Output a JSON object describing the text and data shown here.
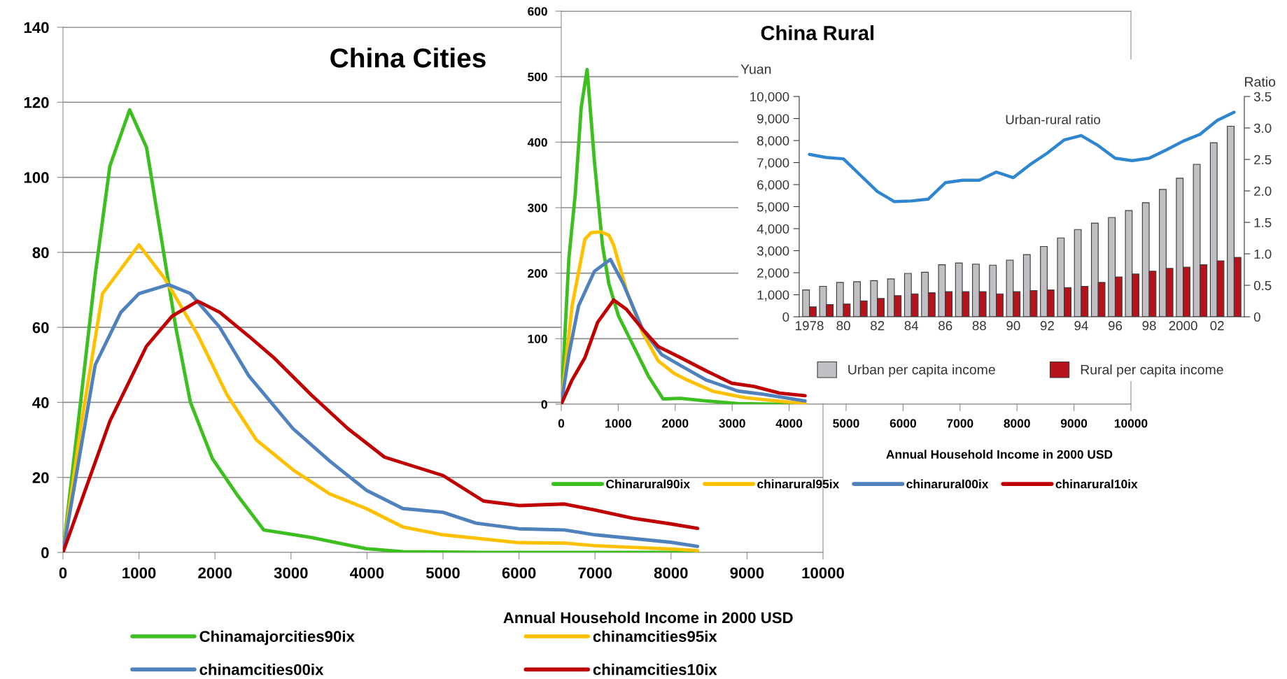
{
  "chart_data": [
    {
      "type": "line",
      "title": "China Cities",
      "xlabel": "Annual Household Income in 2000 USD",
      "xlim": [
        0,
        10000
      ],
      "xticks": [
        0,
        1000,
        2000,
        3000,
        4000,
        5000,
        6000,
        7000,
        8000,
        9000,
        10000
      ],
      "ylim": [
        0,
        140
      ],
      "yticks": [
        0,
        20,
        40,
        60,
        80,
        100,
        120,
        140
      ],
      "grid": "y",
      "legend": "bottom",
      "marker": "none",
      "line_style": "solid",
      "series": [
        {
          "name": "Chinamajorcities90ix",
          "color": "#3cbf1f",
          "x": [
            0,
            231,
            424,
            617,
            877,
            1099,
            1292,
            1484,
            1677,
            1966,
            2304,
            2641,
            3267,
            3990,
            4472,
            5500,
            6500,
            7500,
            8350
          ],
          "values": [
            0,
            40,
            74,
            103,
            118,
            108,
            84,
            60,
            40,
            25,
            15,
            6,
            4,
            1,
            0.2,
            0,
            0,
            0,
            0
          ]
        },
        {
          "name": "chinamcities95ix",
          "color": "#ffc000",
          "x": [
            0,
            231,
            520,
            1000,
            1340,
            1773,
            2159,
            2545,
            3027,
            3508,
            3990,
            4472,
            5000,
            6000,
            6600,
            7000,
            8000,
            8350
          ],
          "values": [
            0,
            33,
            69,
            82,
            73,
            58,
            42,
            30,
            22,
            15.6,
            11.7,
            6.8,
            4.7,
            2.6,
            2.5,
            1.8,
            0.9,
            0.5
          ]
        },
        {
          "name": "chinamcities00ix",
          "color": "#4f81bd",
          "x": [
            0,
            424,
            761,
            1000,
            1388,
            1677,
            2063,
            2448,
            3027,
            3508,
            3990,
            4472,
            5000,
            5434,
            6000,
            6600,
            7000,
            8000,
            8350
          ],
          "values": [
            0,
            50,
            64,
            69,
            71.4,
            69,
            60,
            47,
            33,
            24.4,
            16.6,
            11.7,
            10.7,
            7.8,
            6.3,
            6,
            4.7,
            2.7,
            1.6
          ]
        },
        {
          "name": "chinamcities10ix",
          "color": "#c00000",
          "x": [
            0,
            617,
            1099,
            1436,
            1773,
            2063,
            2448,
            2786,
            3267,
            3749,
            4231,
            5000,
            5533,
            6000,
            6600,
            7000,
            7500,
            8000,
            8350
          ],
          "values": [
            0,
            35,
            55,
            63,
            67,
            64,
            57.6,
            51.7,
            42,
            33,
            25.4,
            20.5,
            13.7,
            12.5,
            12.9,
            11.3,
            9.1,
            7.6,
            6.4
          ]
        }
      ]
    },
    {
      "type": "line",
      "title": "China Rural",
      "xlabel": "Annual Household Income in 2000 USD",
      "xlim": [
        0,
        10000
      ],
      "xticks": [
        0,
        1000,
        2000,
        3000,
        4000,
        5000,
        6000,
        7000,
        8000,
        9000,
        10000
      ],
      "ylim": [
        0,
        600
      ],
      "yticks": [
        0,
        100,
        200,
        300,
        400,
        500,
        600
      ],
      "grid": "y",
      "legend": "bottom",
      "marker": "none",
      "line_style": "solid",
      "series": [
        {
          "name": "Chinarural90ix",
          "color": "#3cbf1f",
          "x": [
            0,
            134,
            246,
            350,
            454,
            583,
            723,
            835,
            1003,
            1255,
            1535,
            1787,
            2095,
            2543,
            3104,
            3700,
            4280
          ],
          "values": [
            0,
            223,
            321,
            453,
            511,
            370,
            243,
            184,
            135,
            91,
            42,
            8,
            9,
            5,
            1,
            0,
            0
          ]
        },
        {
          "name": "chinarural95ix",
          "color": "#ffc000",
          "x": [
            0,
            190,
            415,
            527,
            700,
            835,
            919,
            1143,
            1423,
            1703,
            1983,
            2207,
            2655,
            3216,
            3664,
            4280
          ],
          "values": [
            0,
            150,
            252,
            262,
            263,
            258,
            243,
            174,
            110,
            66,
            47,
            37,
            20,
            10,
            6,
            1
          ]
        },
        {
          "name": "chinarural00ix",
          "color": "#4f81bd",
          "x": [
            0,
            134,
            303,
            583,
            863,
            1087,
            1423,
            1759,
            2095,
            2543,
            3104,
            3552,
            4280
          ],
          "values": [
            0,
            76,
            150,
            203,
            221,
            184,
            115,
            76,
            59,
            37,
            20,
            15,
            5
          ]
        },
        {
          "name": "chinarural10ix",
          "color": "#c00000",
          "x": [
            0,
            190,
            415,
            639,
            919,
            1143,
            1423,
            1703,
            2095,
            2543,
            2992,
            3384,
            3832,
            4280
          ],
          "values": [
            0,
            37,
            71,
            125,
            159,
            145,
            115,
            88,
            71,
            51,
            32,
            27,
            17,
            13
          ]
        }
      ]
    },
    {
      "type": "bar",
      "ylabel": "Yuan",
      "y2label": "Ratio",
      "categories": [
        "1978",
        null,
        "80",
        null,
        "82",
        null,
        "84",
        null,
        "86",
        null,
        "88",
        null,
        "90",
        null,
        "92",
        null,
        "94",
        null,
        "96",
        null,
        "98",
        null,
        "2000",
        null,
        "02",
        null
      ],
      "ylim": [
        0,
        10000
      ],
      "yticks": [
        {
          "value": 0,
          "label": "0"
        },
        {
          "value": 1000,
          "label": "1,000"
        },
        {
          "value": 2000,
          "label": "2,000"
        },
        {
          "value": 3000,
          "label": "3,000"
        },
        {
          "value": 4000,
          "label": "4,000"
        },
        {
          "value": 5000,
          "label": "5,000"
        },
        {
          "value": 6000,
          "label": "6,000"
        },
        {
          "value": 7000,
          "label": "7,000"
        },
        {
          "value": 8000,
          "label": "8,000"
        },
        {
          "value": 9000,
          "label": "9,000"
        },
        {
          "value": 10000,
          "label": "10,000"
        }
      ],
      "y2lim": [
        0,
        3.5
      ],
      "y2ticks": [
        {
          "value": 0,
          "label": "0"
        },
        {
          "value": 0.5,
          "label": "0.5"
        },
        {
          "value": 1,
          "label": "1.0"
        },
        {
          "value": 1.5,
          "label": "1.5"
        },
        {
          "value": 2,
          "label": "2.0"
        },
        {
          "value": 2.5,
          "label": "2.5"
        },
        {
          "value": 3,
          "label": "3.0"
        },
        {
          "value": 3.5,
          "label": "3.5"
        }
      ],
      "grid": false,
      "legend": "bottom",
      "series": [
        {
          "name": "Urban per capita income",
          "color": "#c0c0c4",
          "values": [
            1220,
            1380,
            1560,
            1590,
            1640,
            1720,
            1970,
            2020,
            2360,
            2440,
            2390,
            2340,
            2570,
            2820,
            3190,
            3580,
            3960,
            4250,
            4510,
            4820,
            5180,
            5780,
            6290,
            6920,
            7900,
            8650
          ]
        },
        {
          "name": "Rural per capita income",
          "color": "#b5121b",
          "values": [
            450,
            550,
            580,
            720,
            830,
            960,
            1040,
            1090,
            1140,
            1140,
            1140,
            1040,
            1140,
            1190,
            1220,
            1320,
            1380,
            1560,
            1810,
            1940,
            2070,
            2200,
            2250,
            2360,
            2540,
            2700
          ]
        },
        {
          "name": "Urban-rural ratio",
          "type": "line",
          "axis": "y2",
          "color": "#2e86d0",
          "values": [
            2.58,
            2.53,
            2.51,
            2.25,
            1.99,
            1.83,
            1.84,
            1.87,
            2.13,
            2.17,
            2.17,
            2.3,
            2.21,
            2.42,
            2.6,
            2.81,
            2.88,
            2.72,
            2.52,
            2.48,
            2.52,
            2.65,
            2.79,
            2.9,
            3.12,
            3.25
          ]
        }
      ]
    }
  ]
}
